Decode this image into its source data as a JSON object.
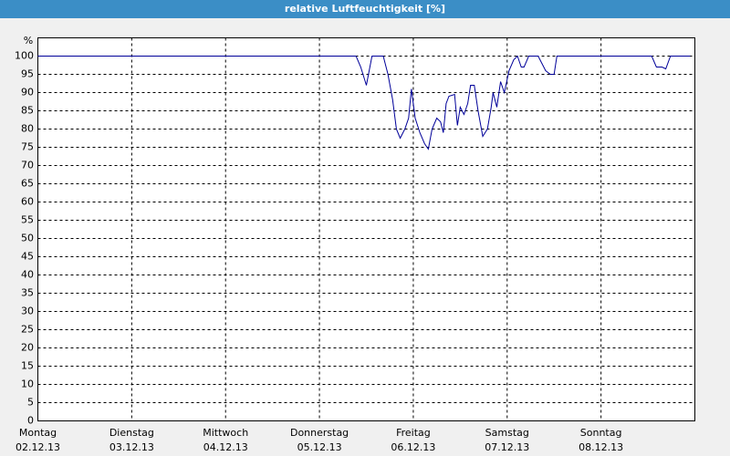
{
  "chart_data": {
    "type": "line",
    "title": "relative Luftfeuchtigkeit [%]",
    "ylabel": "%",
    "xlim": [
      0,
      7
    ],
    "ylim": [
      0,
      100
    ],
    "yticks": [
      0,
      5,
      10,
      15,
      20,
      25,
      30,
      35,
      40,
      45,
      50,
      55,
      60,
      65,
      70,
      75,
      80,
      85,
      90,
      95,
      100
    ],
    "xticks": [
      {
        "value": 0,
        "label": "Montag",
        "sublabel": "02.12.13"
      },
      {
        "value": 1,
        "label": "Dienstag",
        "sublabel": "03.12.13"
      },
      {
        "value": 2,
        "label": "Mittwoch",
        "sublabel": "04.12.13"
      },
      {
        "value": 3,
        "label": "Donnerstag",
        "sublabel": "05.12.13"
      },
      {
        "value": 4,
        "label": "Freitag",
        "sublabel": "06.12.13"
      },
      {
        "value": 5,
        "label": "Samstag",
        "sublabel": "07.12.13"
      },
      {
        "value": 6,
        "label": "Sonntag",
        "sublabel": "08.12.13"
      }
    ],
    "grid": true,
    "x": [
      0,
      3.39,
      3.44,
      3.5,
      3.56,
      3.68,
      3.73,
      3.78,
      3.82,
      3.86,
      3.91,
      3.95,
      3.98,
      4.02,
      4.07,
      4.12,
      4.16,
      4.2,
      4.25,
      4.29,
      4.32,
      4.35,
      4.38,
      4.44,
      4.47,
      4.5,
      4.54,
      4.58,
      4.61,
      4.65,
      4.69,
      4.74,
      4.79,
      4.83,
      4.85,
      4.89,
      4.93,
      4.97,
      5.02,
      5.07,
      5.11,
      5.15,
      5.18,
      5.23,
      5.33,
      5.37,
      5.41,
      5.46,
      5.5,
      5.53,
      6.54,
      6.59,
      6.65,
      6.69,
      6.74,
      6.95
    ],
    "series": [
      {
        "name": "relative Luftfeuchtigkeit",
        "color": "#000099",
        "values": [
          100,
          100,
          97,
          92,
          100,
          100,
          95,
          88,
          80,
          77.5,
          80,
          83,
          91,
          83,
          79,
          76,
          74.5,
          80,
          83,
          82,
          79,
          87,
          89,
          89.5,
          81,
          86,
          84,
          87,
          92,
          92,
          85,
          78,
          80,
          86,
          90,
          86,
          93,
          90,
          96,
          99,
          100,
          97,
          97,
          100,
          100,
          98,
          96,
          95,
          95,
          100,
          100,
          97,
          97,
          96.5,
          100,
          100
        ]
      }
    ]
  }
}
